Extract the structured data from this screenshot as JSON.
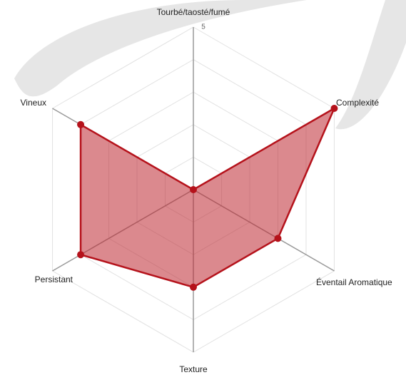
{
  "chart_data": {
    "type": "radar",
    "categories": [
      "Tourbé/taosté/fumé",
      "Complexité",
      "Éventail Aromatique",
      "Texture",
      "Persistant",
      "Vineux"
    ],
    "values": [
      0,
      5,
      3,
      3,
      4,
      4
    ],
    "color": "#b5121b",
    "fill_color": "rgba(190, 40, 50, 0.55)",
    "rlim": [
      0,
      5
    ],
    "rticks": [
      5
    ],
    "grid_levels": [
      1,
      2,
      3,
      4,
      5
    ],
    "grid": true
  }
}
